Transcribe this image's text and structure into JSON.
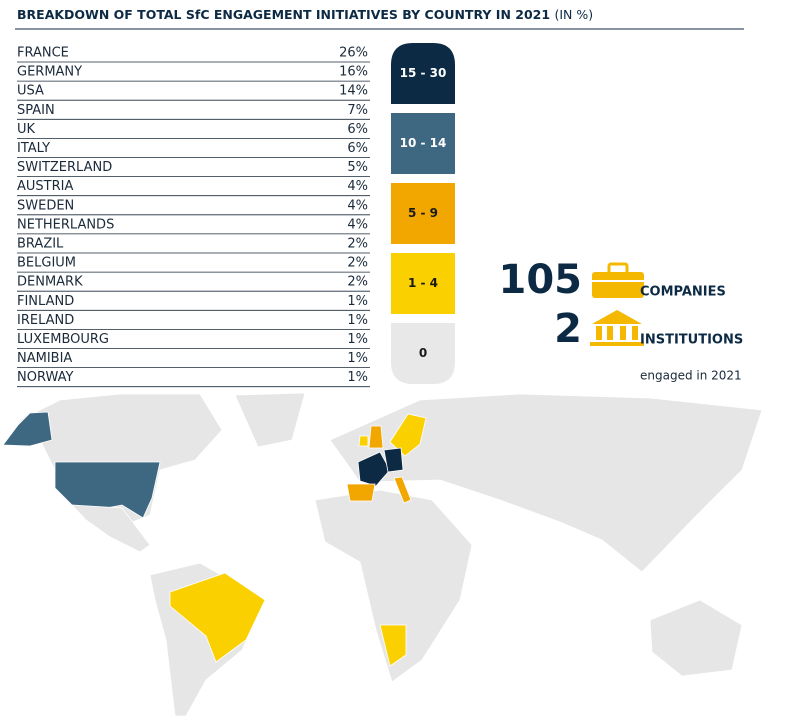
{
  "header": {
    "title": "BREAKDOWN OF TOTAL SfC ENGAGEMENT INITIATIVES BY COUNTRY IN 2021",
    "title_unit": "(IN %)"
  },
  "table": {
    "rows": [
      [
        "FRANCE",
        "26%"
      ],
      [
        "GERMANY",
        "16%"
      ],
      [
        "USA",
        "14%"
      ],
      [
        "SPAIN",
        "7%"
      ],
      [
        "UK",
        "6%"
      ],
      [
        "ITALY",
        "6%"
      ],
      [
        "SWITZERLAND",
        "5%"
      ],
      [
        "AUSTRIA",
        "4%"
      ],
      [
        "SWEDEN",
        "4%"
      ],
      [
        "NETHERLANDS",
        "4%"
      ],
      [
        "BRAZIL",
        "2%"
      ],
      [
        "BELGIUM",
        "2%"
      ],
      [
        "DENMARK",
        "2%"
      ],
      [
        "FINLAND",
        "1%"
      ],
      [
        "IRELAND",
        "1%"
      ],
      [
        "LUXEMBOURG",
        "1%"
      ],
      [
        "NAMIBIA",
        "1%"
      ],
      [
        "NORWAY",
        "1%"
      ]
    ]
  },
  "legend": {
    "items": [
      {
        "label": "15 - 30",
        "color": "#0d2a45",
        "text_color": "#ffffff"
      },
      {
        "label": "10 - 14",
        "color": "#3e6882",
        "text_color": "#ffffff"
      },
      {
        "label": "5 - 9",
        "color": "#f2a600",
        "text_color": "#1a1a1a"
      },
      {
        "label": "1 - 4",
        "color": "#fbd000",
        "text_color": "#1a1a1a"
      },
      {
        "label": "0",
        "color": "#e8e8e8",
        "text_color": "#1a1a1a"
      }
    ]
  },
  "stats": {
    "companies_count": "105",
    "companies_label": "COMPANIES",
    "institutions_count": "2",
    "institutions_label": "INSTITUTIONS",
    "note": "engaged in 2021"
  }
}
